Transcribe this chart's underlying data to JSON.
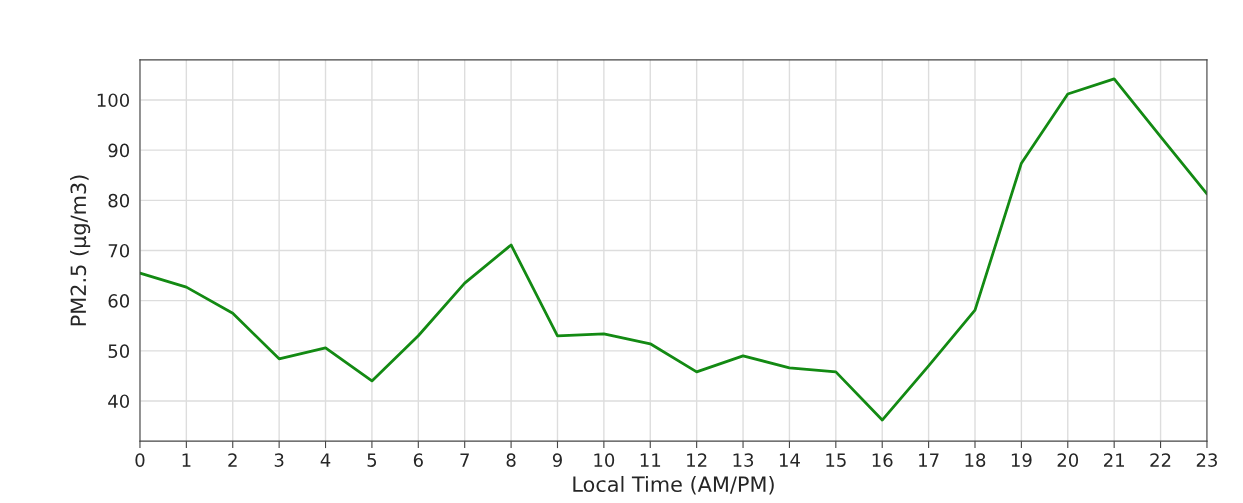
{
  "chart_data": {
    "type": "line",
    "xlabel": "Local Time (AM/PM)",
    "ylabel": "PM2.5 (µg/m3)",
    "x": [
      0,
      1,
      2,
      3,
      4,
      5,
      6,
      7,
      8,
      9,
      10,
      11,
      12,
      13,
      14,
      15,
      16,
      17,
      18,
      19,
      20,
      21,
      22,
      23
    ],
    "series": [
      {
        "color": "#138a13",
        "values": [
          65.5,
          62.7,
          57.5,
          48.4,
          50.6,
          44.0,
          53.0,
          63.5,
          71.1,
          53.0,
          53.4,
          51.4,
          45.8,
          49.0,
          46.6,
          45.8,
          36.2,
          47.0,
          58.1,
          87.4,
          101.2,
          104.2,
          92.7,
          81.3
        ]
      }
    ],
    "xlim": [
      0,
      23
    ],
    "xticks": [
      0,
      1,
      2,
      3,
      4,
      5,
      6,
      7,
      8,
      9,
      10,
      11,
      12,
      13,
      14,
      15,
      16,
      17,
      18,
      19,
      20,
      21,
      22,
      23
    ],
    "ylim": [
      32,
      108
    ],
    "yticks": [
      40,
      50,
      60,
      70,
      80,
      90,
      100
    ],
    "grid": true,
    "marker": "none",
    "line_style": "solid"
  }
}
